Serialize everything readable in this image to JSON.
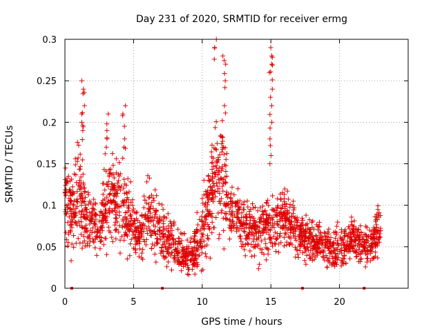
{
  "chart_data": {
    "type": "scatter",
    "title": "Day 231 of 2020, SRMTID for receiver ermg",
    "xlabel": "GPS time / hours",
    "ylabel": "SRMTID / TECUs",
    "xlim": [
      0,
      25
    ],
    "ylim": [
      0,
      0.3
    ],
    "xticks": [
      0,
      5,
      10,
      15,
      20
    ],
    "yticks": [
      0,
      0.05,
      0.1,
      0.15,
      0.2,
      0.25,
      0.3
    ],
    "xtick_labels": [
      "0",
      "5",
      "10",
      "15",
      "20"
    ],
    "ytick_labels": [
      "0",
      "0.05",
      "0.1",
      "0.15",
      "0.2",
      "0.25",
      "0.3"
    ],
    "grid": true,
    "marker": "+",
    "color": "#ff0000",
    "marker_color": "#dd0000",
    "profile_hours": [
      0,
      0.5,
      1,
      1.5,
      2,
      2.5,
      3,
      3.5,
      4,
      4.5,
      5,
      5.5,
      6,
      6.5,
      7,
      7.5,
      8,
      8.5,
      9,
      9.5,
      10,
      10.5,
      11,
      11.5,
      12,
      12.5,
      13,
      13.5,
      14,
      14.5,
      15,
      15.5,
      16,
      16.5,
      17,
      17.5,
      18,
      18.5,
      19,
      19.5,
      20,
      20.5,
      21,
      21.5,
      22,
      22.5,
      23
    ],
    "profile_center": [
      0.1,
      0.09,
      0.12,
      0.09,
      0.08,
      0.075,
      0.1,
      0.11,
      0.1,
      0.09,
      0.075,
      0.065,
      0.09,
      0.075,
      0.07,
      0.06,
      0.05,
      0.045,
      0.04,
      0.045,
      0.07,
      0.1,
      0.13,
      0.13,
      0.1,
      0.085,
      0.075,
      0.07,
      0.07,
      0.075,
      0.075,
      0.08,
      0.085,
      0.075,
      0.065,
      0.06,
      0.06,
      0.055,
      0.05,
      0.045,
      0.05,
      0.055,
      0.06,
      0.055,
      0.05,
      0.06,
      0.07
    ],
    "profile_spread": [
      0.05,
      0.04,
      0.06,
      0.04,
      0.03,
      0.03,
      0.05,
      0.05,
      0.05,
      0.05,
      0.03,
      0.03,
      0.04,
      0.04,
      0.03,
      0.03,
      0.025,
      0.02,
      0.02,
      0.025,
      0.04,
      0.05,
      0.06,
      0.06,
      0.04,
      0.03,
      0.03,
      0.03,
      0.03,
      0.03,
      0.03,
      0.03,
      0.035,
      0.03,
      0.025,
      0.025,
      0.025,
      0.02,
      0.02,
      0.02,
      0.025,
      0.025,
      0.025,
      0.025,
      0.02,
      0.025,
      0.03
    ],
    "spikes": [
      {
        "x": 1.3,
        "values": [
          0.25,
          0.24,
          0.22,
          0.21,
          0.2,
          0.19
        ]
      },
      {
        "x": 3.1,
        "values": [
          0.21,
          0.19,
          0.18
        ]
      },
      {
        "x": 4.3,
        "values": [
          0.22,
          0.21,
          0.18,
          0.17
        ]
      },
      {
        "x": 11.0,
        "values": [
          0.3,
          0.29
        ]
      },
      {
        "x": 11.6,
        "values": [
          0.28,
          0.27,
          0.25,
          0.22
        ]
      },
      {
        "x": 15.0,
        "values": [
          0.29,
          0.28,
          0.27,
          0.26,
          0.24,
          0.22,
          0.2,
          0.18,
          0.16
        ]
      }
    ],
    "axis_markers_x": [
      0.5,
      7.1,
      17.3,
      21.8
    ]
  }
}
